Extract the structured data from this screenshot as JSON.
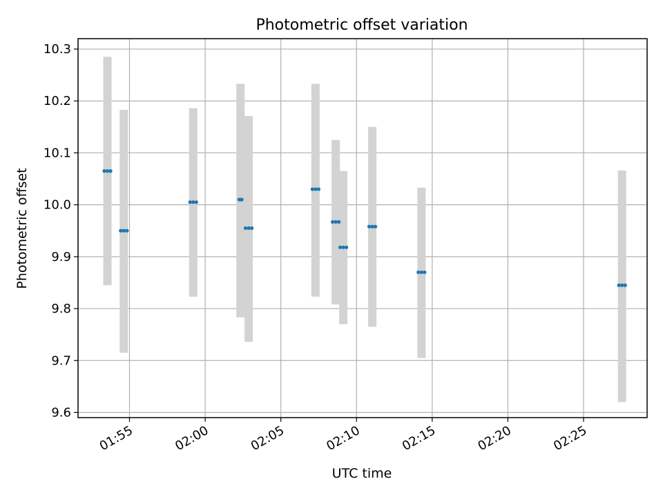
{
  "chart_data": {
    "type": "scatter",
    "title": "Photometric offset variation",
    "xlabel": "UTC time",
    "ylabel": "Photometric offset",
    "x_ticks": [
      "01:55",
      "02:00",
      "02:05",
      "02:10",
      "02:15",
      "02:20",
      "02:25"
    ],
    "x_tick_minutes": [
      115,
      120,
      125,
      130,
      135,
      140,
      145
    ],
    "xlim_minutes": [
      111.6,
      149.2
    ],
    "y_ticks": [
      9.6,
      9.7,
      9.8,
      9.9,
      10.0,
      10.1,
      10.2,
      10.3
    ],
    "ylim": [
      9.59,
      10.32
    ],
    "grid": true,
    "colors": {
      "point": "#1f77b4",
      "errorbar": "#d3d3d3",
      "grid": "#b0b0b0"
    },
    "points": [
      {
        "x_start": "01:53:20",
        "x_end": "01:53:45",
        "y": 10.065,
        "y_low": 9.845,
        "y_high": 10.285
      },
      {
        "x_start": "01:54:25",
        "x_end": "01:54:50",
        "y": 9.95,
        "y_low": 9.715,
        "y_high": 10.183
      },
      {
        "x_start": "01:59:00",
        "x_end": "01:59:25",
        "y": 10.005,
        "y_low": 9.823,
        "y_high": 10.186
      },
      {
        "x_start": "02:02:15",
        "x_end": "02:02:25",
        "y": 10.01,
        "y_low": 9.783,
        "y_high": 10.233
      },
      {
        "x_start": "02:02:40",
        "x_end": "02:03:05",
        "y": 9.955,
        "y_low": 9.736,
        "y_high": 10.171
      },
      {
        "x_start": "02:07:05",
        "x_end": "02:07:30",
        "y": 10.03,
        "y_low": 9.823,
        "y_high": 10.233
      },
      {
        "x_start": "02:08:25",
        "x_end": "02:08:50",
        "y": 9.967,
        "y_low": 9.808,
        "y_high": 10.125
      },
      {
        "x_start": "02:08:55",
        "x_end": "02:09:20",
        "y": 9.918,
        "y_low": 9.77,
        "y_high": 10.065
      },
      {
        "x_start": "02:10:50",
        "x_end": "02:11:15",
        "y": 9.958,
        "y_low": 9.765,
        "y_high": 10.15
      },
      {
        "x_start": "02:14:05",
        "x_end": "02:14:30",
        "y": 9.87,
        "y_low": 9.705,
        "y_high": 10.033
      },
      {
        "x_start": "02:27:20",
        "x_end": "02:27:45",
        "y": 9.845,
        "y_low": 9.62,
        "y_high": 10.066
      }
    ]
  }
}
